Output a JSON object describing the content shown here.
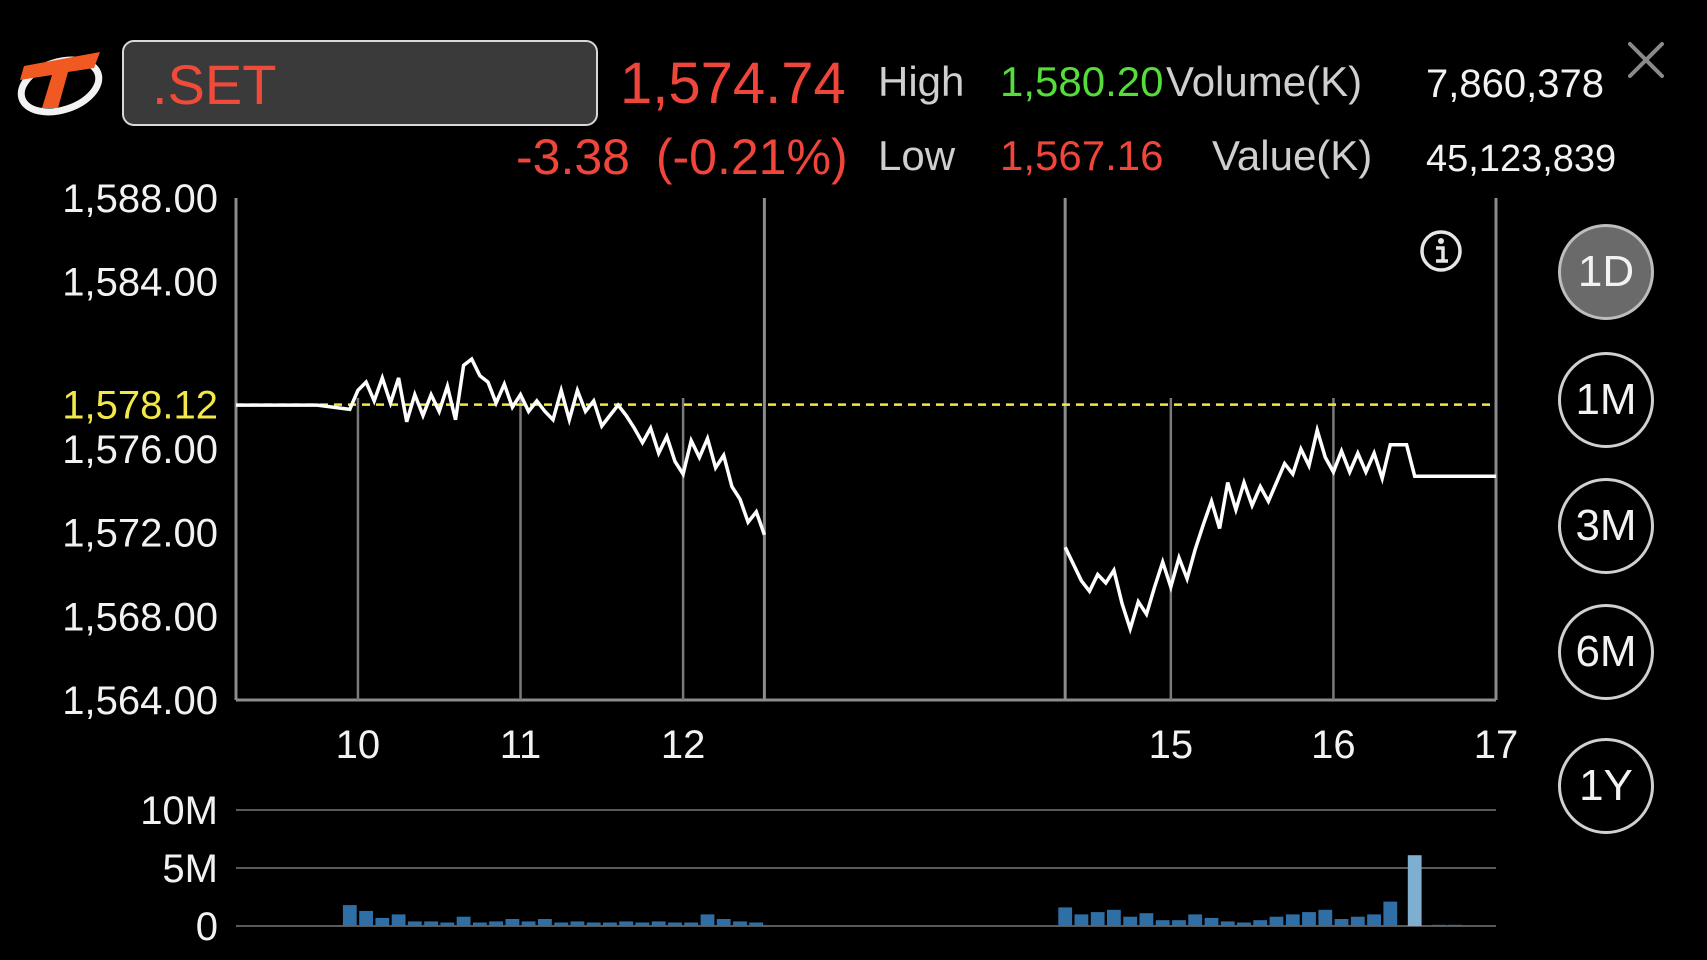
{
  "header": {
    "symbol": ".SET",
    "last_price": "1,574.74",
    "change": "-3.38",
    "change_pct": "(-0.21%)",
    "high_label": "High",
    "high_value": "1,580.20",
    "low_label": "Low",
    "low_value": "1,567.16",
    "volume_label": "Volume(K)",
    "volume_value": "7,860,378",
    "value_label": "Value(K)",
    "value_value": "45,123,839"
  },
  "icons": {
    "logo": "brand-logo",
    "close": "close-icon",
    "info": "info-icon"
  },
  "colors": {
    "down": "#f0453a",
    "up": "#55dd3a",
    "reference": "#f2e84a",
    "volume_bar": "#2f6fa5",
    "volume_bar_light": "#7eaed0"
  },
  "timeframes": [
    "1D",
    "1M",
    "3M",
    "6M",
    "1Y"
  ],
  "active_timeframe": "1D",
  "chart_data": [
    {
      "type": "line",
      "y_ticks": [
        "1,588.00",
        "1,584.00",
        "1,576.00",
        "1,572.00",
        "1,568.00",
        "1,564.00"
      ],
      "y_tick_values": [
        1588,
        1584,
        1576,
        1572,
        1568,
        1564
      ],
      "ylim": [
        1564,
        1588
      ],
      "reference_label": "1,578.12",
      "reference_value": 1578.12,
      "x_ticks": [
        "10",
        "11",
        "12",
        "15",
        "16",
        "17"
      ],
      "x_tick_values": [
        10,
        11,
        12,
        15,
        16,
        17
      ],
      "xlim": [
        9.25,
        17
      ],
      "session_breaks": [
        12.5,
        14.35
      ],
      "series": [
        {
          "segment": "morning",
          "x": [
            9.25,
            9.5,
            9.75,
            9.95,
            10.0,
            10.05,
            10.1,
            10.15,
            10.2,
            10.25,
            10.3,
            10.35,
            10.4,
            10.45,
            10.5,
            10.55,
            10.6,
            10.65,
            10.7,
            10.75,
            10.8,
            10.85,
            10.9,
            10.95,
            11.0,
            11.05,
            11.1,
            11.15,
            11.2,
            11.25,
            11.3,
            11.35,
            11.4,
            11.45,
            11.5,
            11.55,
            11.6,
            11.65,
            11.7,
            11.75,
            11.8,
            11.85,
            11.9,
            11.95,
            12.0,
            12.05,
            12.1,
            12.15,
            12.2,
            12.25,
            12.3,
            12.35,
            12.4,
            12.45,
            12.5
          ],
          "y": [
            1578.1,
            1578.1,
            1578.1,
            1577.9,
            1578.8,
            1579.2,
            1578.3,
            1579.4,
            1578.2,
            1579.4,
            1577.3,
            1578.6,
            1577.6,
            1578.6,
            1577.8,
            1579.0,
            1577.4,
            1580.0,
            1580.3,
            1579.5,
            1579.2,
            1578.2,
            1579.1,
            1578.0,
            1578.6,
            1577.8,
            1578.3,
            1577.8,
            1577.4,
            1578.8,
            1577.4,
            1578.8,
            1577.8,
            1578.3,
            1577.1,
            1577.6,
            1578.1,
            1577.6,
            1577.0,
            1576.3,
            1577.0,
            1575.8,
            1576.6,
            1575.4,
            1574.8,
            1576.4,
            1575.6,
            1576.5,
            1575.1,
            1575.7,
            1574.2,
            1573.6,
            1572.5,
            1573.0,
            1571.9
          ]
        },
        {
          "segment": "afternoon",
          "x": [
            14.35,
            14.45,
            14.5,
            14.55,
            14.6,
            14.65,
            14.7,
            14.75,
            14.8,
            14.85,
            14.9,
            14.95,
            15.0,
            15.05,
            15.1,
            15.15,
            15.2,
            15.25,
            15.3,
            15.35,
            15.4,
            15.45,
            15.5,
            15.55,
            15.6,
            15.65,
            15.7,
            15.75,
            15.8,
            15.85,
            15.9,
            15.95,
            16.0,
            16.05,
            16.1,
            16.15,
            16.2,
            16.25,
            16.3,
            16.35,
            16.4,
            16.45,
            16.5,
            16.6,
            16.65,
            16.7,
            16.8,
            16.9,
            17.0
          ],
          "y": [
            1571.3,
            1569.7,
            1569.2,
            1570.0,
            1569.6,
            1570.2,
            1568.6,
            1567.4,
            1568.7,
            1568.1,
            1569.4,
            1570.6,
            1569.4,
            1570.8,
            1569.8,
            1571.2,
            1572.4,
            1573.5,
            1572.2,
            1574.4,
            1573.1,
            1574.4,
            1573.3,
            1574.2,
            1573.5,
            1574.4,
            1575.3,
            1574.8,
            1576.0,
            1575.2,
            1576.9,
            1575.6,
            1574.9,
            1575.9,
            1574.9,
            1575.8,
            1574.9,
            1575.8,
            1574.6,
            1576.2,
            1576.2,
            1576.2,
            1574.7,
            1574.7,
            1574.7,
            1574.7,
            1574.7,
            1574.7,
            1574.7
          ]
        }
      ]
    },
    {
      "type": "bar",
      "y_ticks": [
        "10M",
        "5M",
        "0"
      ],
      "y_tick_values": [
        10,
        5,
        0
      ],
      "ylim": [
        0,
        10
      ],
      "unit": "M",
      "x": [
        9.95,
        10.05,
        10.15,
        10.25,
        10.35,
        10.45,
        10.55,
        10.65,
        10.75,
        10.85,
        10.95,
        11.05,
        11.15,
        11.25,
        11.35,
        11.45,
        11.55,
        11.65,
        11.75,
        11.85,
        11.95,
        12.05,
        12.15,
        12.25,
        12.35,
        12.45,
        14.35,
        14.45,
        14.55,
        14.65,
        14.75,
        14.85,
        14.95,
        15.05,
        15.15,
        15.25,
        15.35,
        15.45,
        15.55,
        15.65,
        15.75,
        15.85,
        15.95,
        16.05,
        16.15,
        16.25,
        16.35,
        16.5,
        16.65,
        16.75
      ],
      "values": [
        1.8,
        1.3,
        0.7,
        1.0,
        0.4,
        0.4,
        0.3,
        0.8,
        0.3,
        0.4,
        0.6,
        0.4,
        0.6,
        0.3,
        0.4,
        0.3,
        0.3,
        0.4,
        0.3,
        0.4,
        0.3,
        0.3,
        1.0,
        0.6,
        0.4,
        0.3,
        1.6,
        1.0,
        1.2,
        1.4,
        0.8,
        1.1,
        0.5,
        0.5,
        1.0,
        0.7,
        0.4,
        0.3,
        0.5,
        0.8,
        1.0,
        1.2,
        1.4,
        0.6,
        0.8,
        1.0,
        2.1,
        6.1,
        0.1,
        0.1
      ]
    }
  ]
}
